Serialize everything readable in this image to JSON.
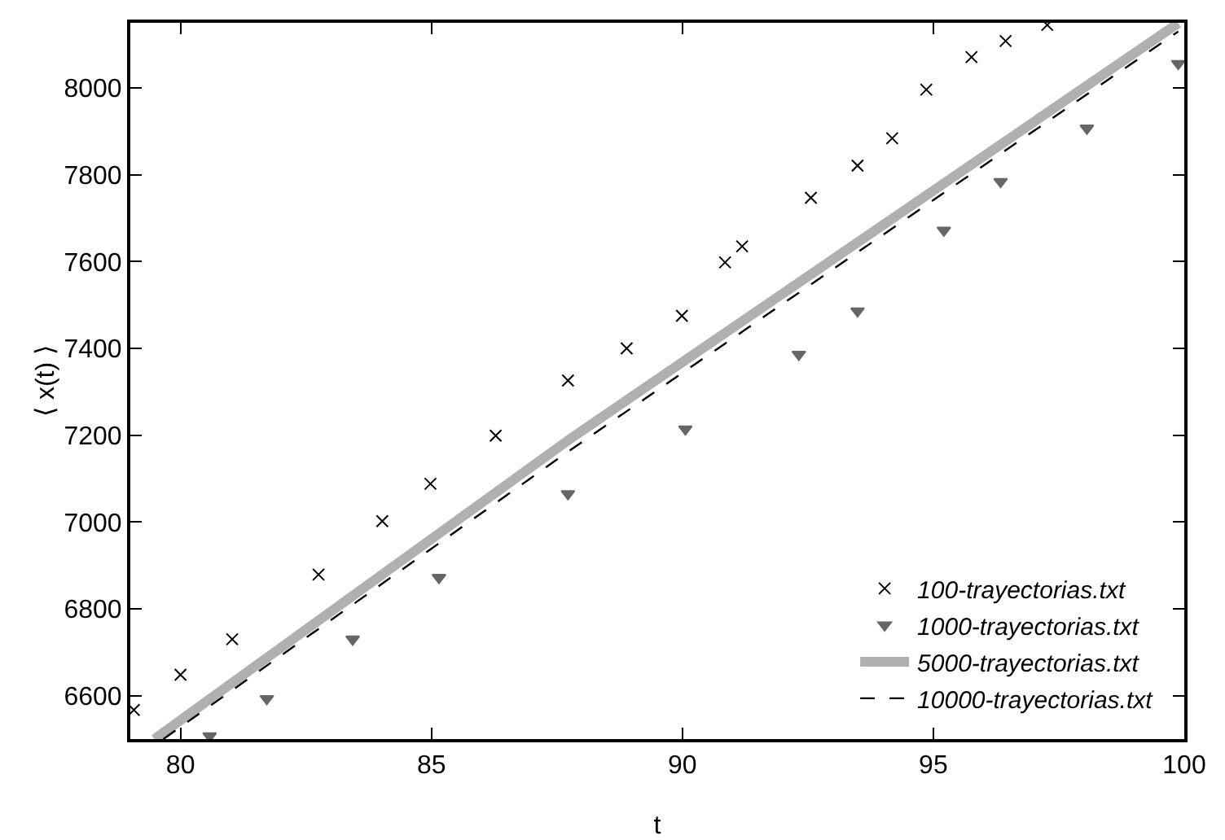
{
  "chart_data": {
    "type": "line",
    "xlabel": "t",
    "ylabel": "⟨ x(t) ⟩",
    "xlim": [
      79,
      100
    ],
    "ylim": [
      6500,
      8150
    ],
    "xticks": [
      80,
      85,
      90,
      95,
      100
    ],
    "yticks": [
      6600,
      6800,
      7000,
      7200,
      7400,
      7600,
      7800,
      8000
    ],
    "grid": false,
    "legend": "bottom right",
    "series": [
      {
        "name": "100-trayectorias.txt",
        "type": "scatter",
        "marker": "cross",
        "color": "#000000",
        "x": [
          79.07,
          80,
          81.03,
          82.75,
          84.02,
          84.98,
          86.28,
          87.72,
          88.89,
          89.99,
          90.85,
          91.19,
          92.56,
          93.49,
          94.18,
          94.86,
          95.76,
          96.44,
          97.27
        ],
        "values": [
          6567,
          6648,
          6730,
          6879,
          7002,
          7088,
          7199,
          7326,
          7400,
          7475,
          7598,
          7635,
          7747,
          7821,
          7884,
          7996,
          8071,
          8108,
          8145
        ]
      },
      {
        "name": "1000-trayectorias.txt",
        "type": "scatter",
        "marker": "triangle",
        "color": "#666666",
        "x": [
          80.58,
          81.72,
          83.43,
          85.15,
          87.72,
          90.06,
          92.32,
          93.49,
          95.21,
          96.34,
          98.06,
          99.88
        ],
        "values": [
          6507,
          6593,
          6730,
          6872,
          7065,
          7214,
          7386,
          7486,
          7672,
          7784,
          7907,
          8056
        ]
      },
      {
        "name": "5000-trayectorias.txt",
        "line_style": "solid",
        "color": "#b0b0b0",
        "x": [
          79.48,
          87.72,
          99.88
        ],
        "values": [
          6500,
          7188,
          8149
        ]
      },
      {
        "name": "10000-trayectorias.txt",
        "line_style": "dashed",
        "color": "#000000",
        "x": [
          79.66,
          87.72,
          99.88
        ],
        "values": [
          6500,
          7162,
          8130
        ]
      }
    ]
  }
}
